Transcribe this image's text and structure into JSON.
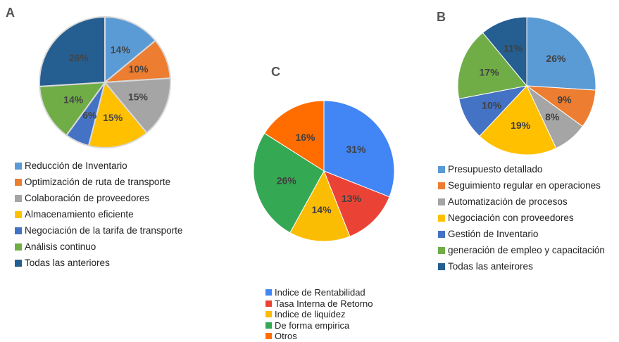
{
  "chart_data": [
    {
      "type": "pie",
      "panel": "A",
      "title": "",
      "categories": [
        "Reducción de Inventario",
        "Optimización de ruta de transporte",
        "Colaboración de proveedores",
        "Almacenamiento eficiente",
        "Negociación de la tarifa de transporte",
        "Análisis continuo",
        "Todas las anteriores"
      ],
      "values": [
        14,
        10,
        15,
        15,
        6,
        14,
        26
      ],
      "data_labels": [
        "14%",
        "10%",
        "15%",
        "15%",
        "6%",
        "14%",
        "26%"
      ],
      "colors": [
        "#5B9BD5",
        "#ED7D31",
        "#A5A5A5",
        "#FFC000",
        "#4472C4",
        "#70AD47",
        "#255E91"
      ],
      "legend_position": "bottom"
    },
    {
      "type": "pie",
      "panel": "B",
      "title": "",
      "categories": [
        "Presupuesto detallado",
        "Seguimiento regular en operaciones",
        "Automatización de procesos",
        "Negociación con proveedores",
        "Gestión de Inventario",
        "generación de empleo y capacitación",
        "Todas las anteirores"
      ],
      "values": [
        26,
        9,
        8,
        19,
        10,
        17,
        11
      ],
      "data_labels": [
        "26%",
        "9%",
        "8%",
        "19%",
        "10%",
        "17%",
        "11%"
      ],
      "colors": [
        "#5B9BD5",
        "#ED7D31",
        "#A5A5A5",
        "#FFC000",
        "#4472C4",
        "#70AD47",
        "#255E91"
      ],
      "legend_position": "bottom"
    },
    {
      "type": "pie",
      "panel": "C",
      "title": "",
      "categories": [
        "Indice de Rentabilidad",
        "Tasa Interna de Retorno",
        "Indice de liquidez",
        "De forma empirica",
        "Otros"
      ],
      "values": [
        31,
        13,
        14,
        26,
        16
      ],
      "data_labels": [
        "31%",
        "13%",
        "14%",
        "26%",
        "16%"
      ],
      "colors": [
        "#4285F4",
        "#EA4335",
        "#FBBC04",
        "#34A853",
        "#FF6D01"
      ],
      "legend_position": "bottom"
    }
  ]
}
